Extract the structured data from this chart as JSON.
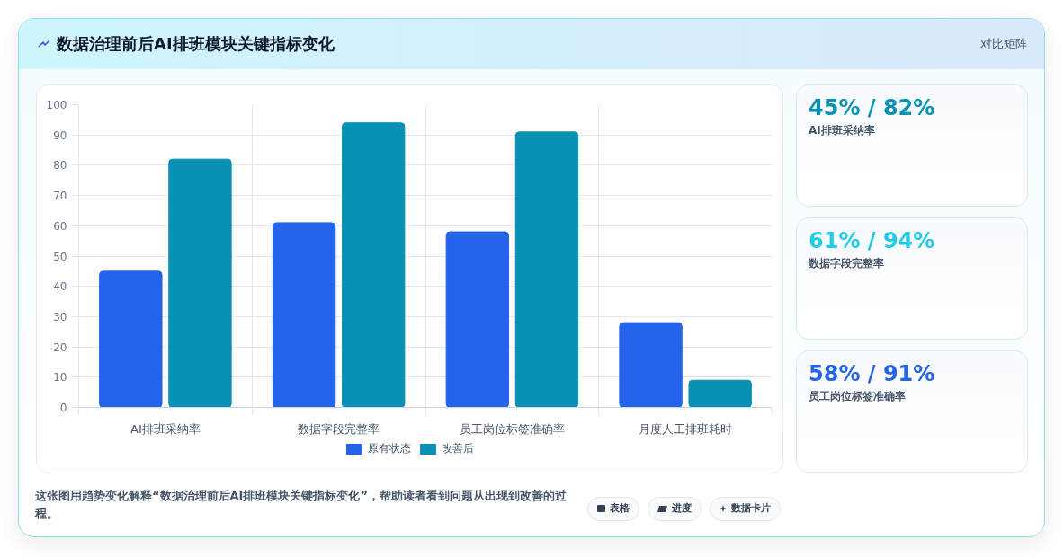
{
  "chart_data": {
    "type": "bar",
    "title": "数据治理前后AI排班模块关键指标变化",
    "categories": [
      "AI排班采纳率",
      "数据字段完整率",
      "员工岗位标签准确率",
      "月度人工排班耗时"
    ],
    "series": [
      {
        "name": "原有状态",
        "color": "#2563eb",
        "values": [
          45,
          61,
          58,
          28
        ]
      },
      {
        "name": "改善后",
        "color": "#0891b2",
        "values": [
          82,
          94,
          91,
          9
        ]
      }
    ],
    "ylim": [
      0,
      100
    ],
    "yticks": [
      0,
      10,
      20,
      30,
      40,
      50,
      60,
      70,
      80,
      90,
      100
    ],
    "grid": true,
    "legend": "bottom",
    "annotations": [
      "对比矩阵",
      "45% / 82%",
      "AI排班采纳率",
      "61% / 94%",
      "数据字段完整率",
      "58% / 91%",
      "员工岗位标签准确率",
      "这张图用趋势变化解释“数据治理前后AI排班模块关键指标变化”，帮助读者看到问题从出现到改善的过程。",
      "表格",
      "进度",
      "数据卡片"
    ]
  }
}
